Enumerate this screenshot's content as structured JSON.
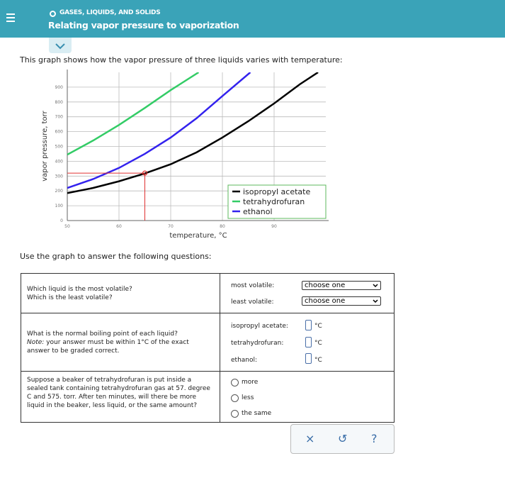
{
  "header": {
    "category": "GASES, LIQUIDS, AND SOLIDS",
    "title": "Relating vapor pressure to vaporization"
  },
  "intro": "This graph shows how the vapor pressure of three liquids varies with temperature:",
  "chart_data": {
    "type": "line",
    "x_label": "temperature, °C",
    "y_label": "vapor pressure, torr",
    "xlim": [
      50,
      100
    ],
    "ylim": [
      0,
      1000
    ],
    "xticks": [
      50,
      60,
      70,
      80,
      90
    ],
    "yticks": [
      0,
      100,
      200,
      300,
      400,
      500,
      600,
      700,
      800,
      900
    ],
    "grid": true,
    "legend": "lower right",
    "series": [
      {
        "name": "isopropyl acetate",
        "color": "#000000",
        "x": [
          50,
          55,
          60,
          65,
          70,
          75,
          80,
          85,
          90,
          95,
          98.5
        ],
        "values": [
          185,
          220,
          265,
          318,
          380,
          460,
          560,
          670,
          790,
          920,
          1000
        ]
      },
      {
        "name": "tetrahydrofuran",
        "color": "#33cc66",
        "x": [
          50,
          55,
          60,
          65,
          70,
          75.4
        ],
        "values": [
          445,
          540,
          645,
          760,
          880,
          1000
        ]
      },
      {
        "name": "ethanol",
        "color": "#3322ee",
        "x": [
          50,
          55,
          60,
          65,
          70,
          75,
          80,
          85.4
        ],
        "values": [
          220,
          280,
          355,
          450,
          560,
          690,
          840,
          1000
        ]
      }
    ],
    "marker": {
      "x": 65,
      "y": 320,
      "color": "#e03030"
    }
  },
  "instruction": "Use the graph to answer the following questions:",
  "questions": [
    {
      "prompt": [
        "Which liquid is the most volatile?",
        "Which is the least volatile?"
      ],
      "fields": [
        {
          "label": "most volatile:",
          "choice": "choose one"
        },
        {
          "label": "least volatile:",
          "choice": "choose one"
        }
      ]
    },
    {
      "prompt": [
        "What is the normal boiling point of each liquid?"
      ],
      "note_label": "Note:",
      "note_text": "your answer must be within 1°C of the exact answer to be graded correct.",
      "fields": [
        {
          "label": "isopropyl acetate:",
          "unit": "°C"
        },
        {
          "label": "tetrahydrofuran:",
          "unit": "°C"
        },
        {
          "label": "ethanol:",
          "unit": "°C"
        }
      ]
    },
    {
      "prompt": [
        "Suppose a beaker of tetrahydrofuran is put inside a sealed tank containing tetrahydrofuran gas at 57. degree C and 575. torr. After ten minutes, will there be more liquid in the beaker, less liquid, or the same amount?"
      ],
      "options": [
        "more",
        "less",
        "the same"
      ]
    }
  ],
  "toolbar": {
    "close": "×",
    "undo": "↺",
    "help": "?"
  }
}
